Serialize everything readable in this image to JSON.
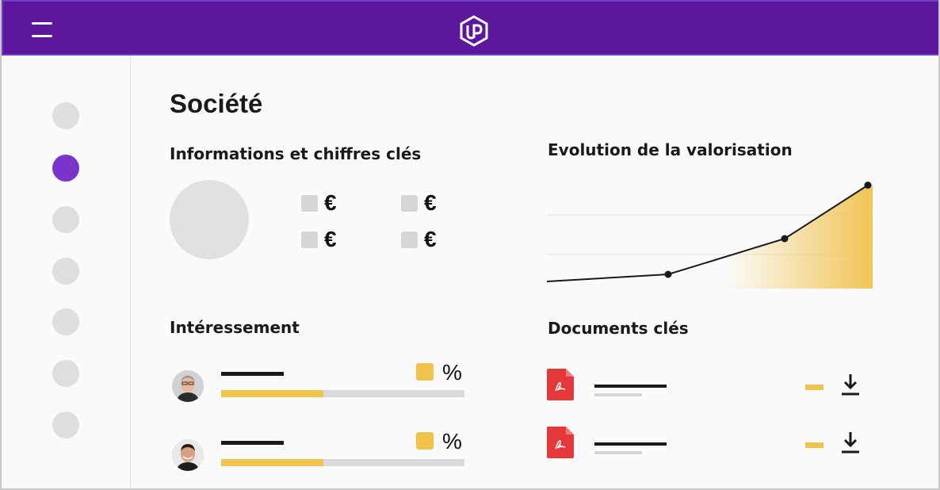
{
  "header": {
    "menu_icon": "hamburger-menu-icon",
    "logo_icon": "up-hexagon-logo"
  },
  "sidebar": {
    "items": 7,
    "active_index": 1,
    "active_color": "#7a34cc"
  },
  "page": {
    "title": "Société"
  },
  "sections": {
    "key_info": {
      "title": "Informations et chiffres clés",
      "kpis": [
        {
          "symbol": "€"
        },
        {
          "symbol": "€"
        },
        {
          "symbol": "€"
        },
        {
          "symbol": "€"
        }
      ]
    },
    "valuation": {
      "title": "Evolution de la valorisation"
    },
    "profit_sharing": {
      "title": "Intéressement",
      "people": [
        {
          "symbol": "%",
          "progress": 0.42
        },
        {
          "symbol": "%",
          "progress": 0.42
        }
      ]
    },
    "documents": {
      "title": "Documents clés",
      "items": [
        {
          "icon": "pdf-file-icon",
          "action_icon": "download-icon"
        },
        {
          "icon": "pdf-file-icon",
          "action_icon": "download-icon"
        }
      ]
    }
  },
  "chart_data": {
    "type": "line",
    "title": "Evolution de la valorisation",
    "x": [
      0,
      1,
      2,
      3
    ],
    "series": [
      {
        "values": [
          10,
          20,
          70,
          145
        ]
      }
    ],
    "ylim": [
      0,
      160
    ],
    "grid": true,
    "colors": {
      "line": "#1a1a1a",
      "area": "#f1c24c"
    }
  },
  "colors": {
    "header": "#5c179e",
    "accent": "#f1c24c",
    "placeholder": "#dedede",
    "pdf_red": "#e5383b"
  }
}
